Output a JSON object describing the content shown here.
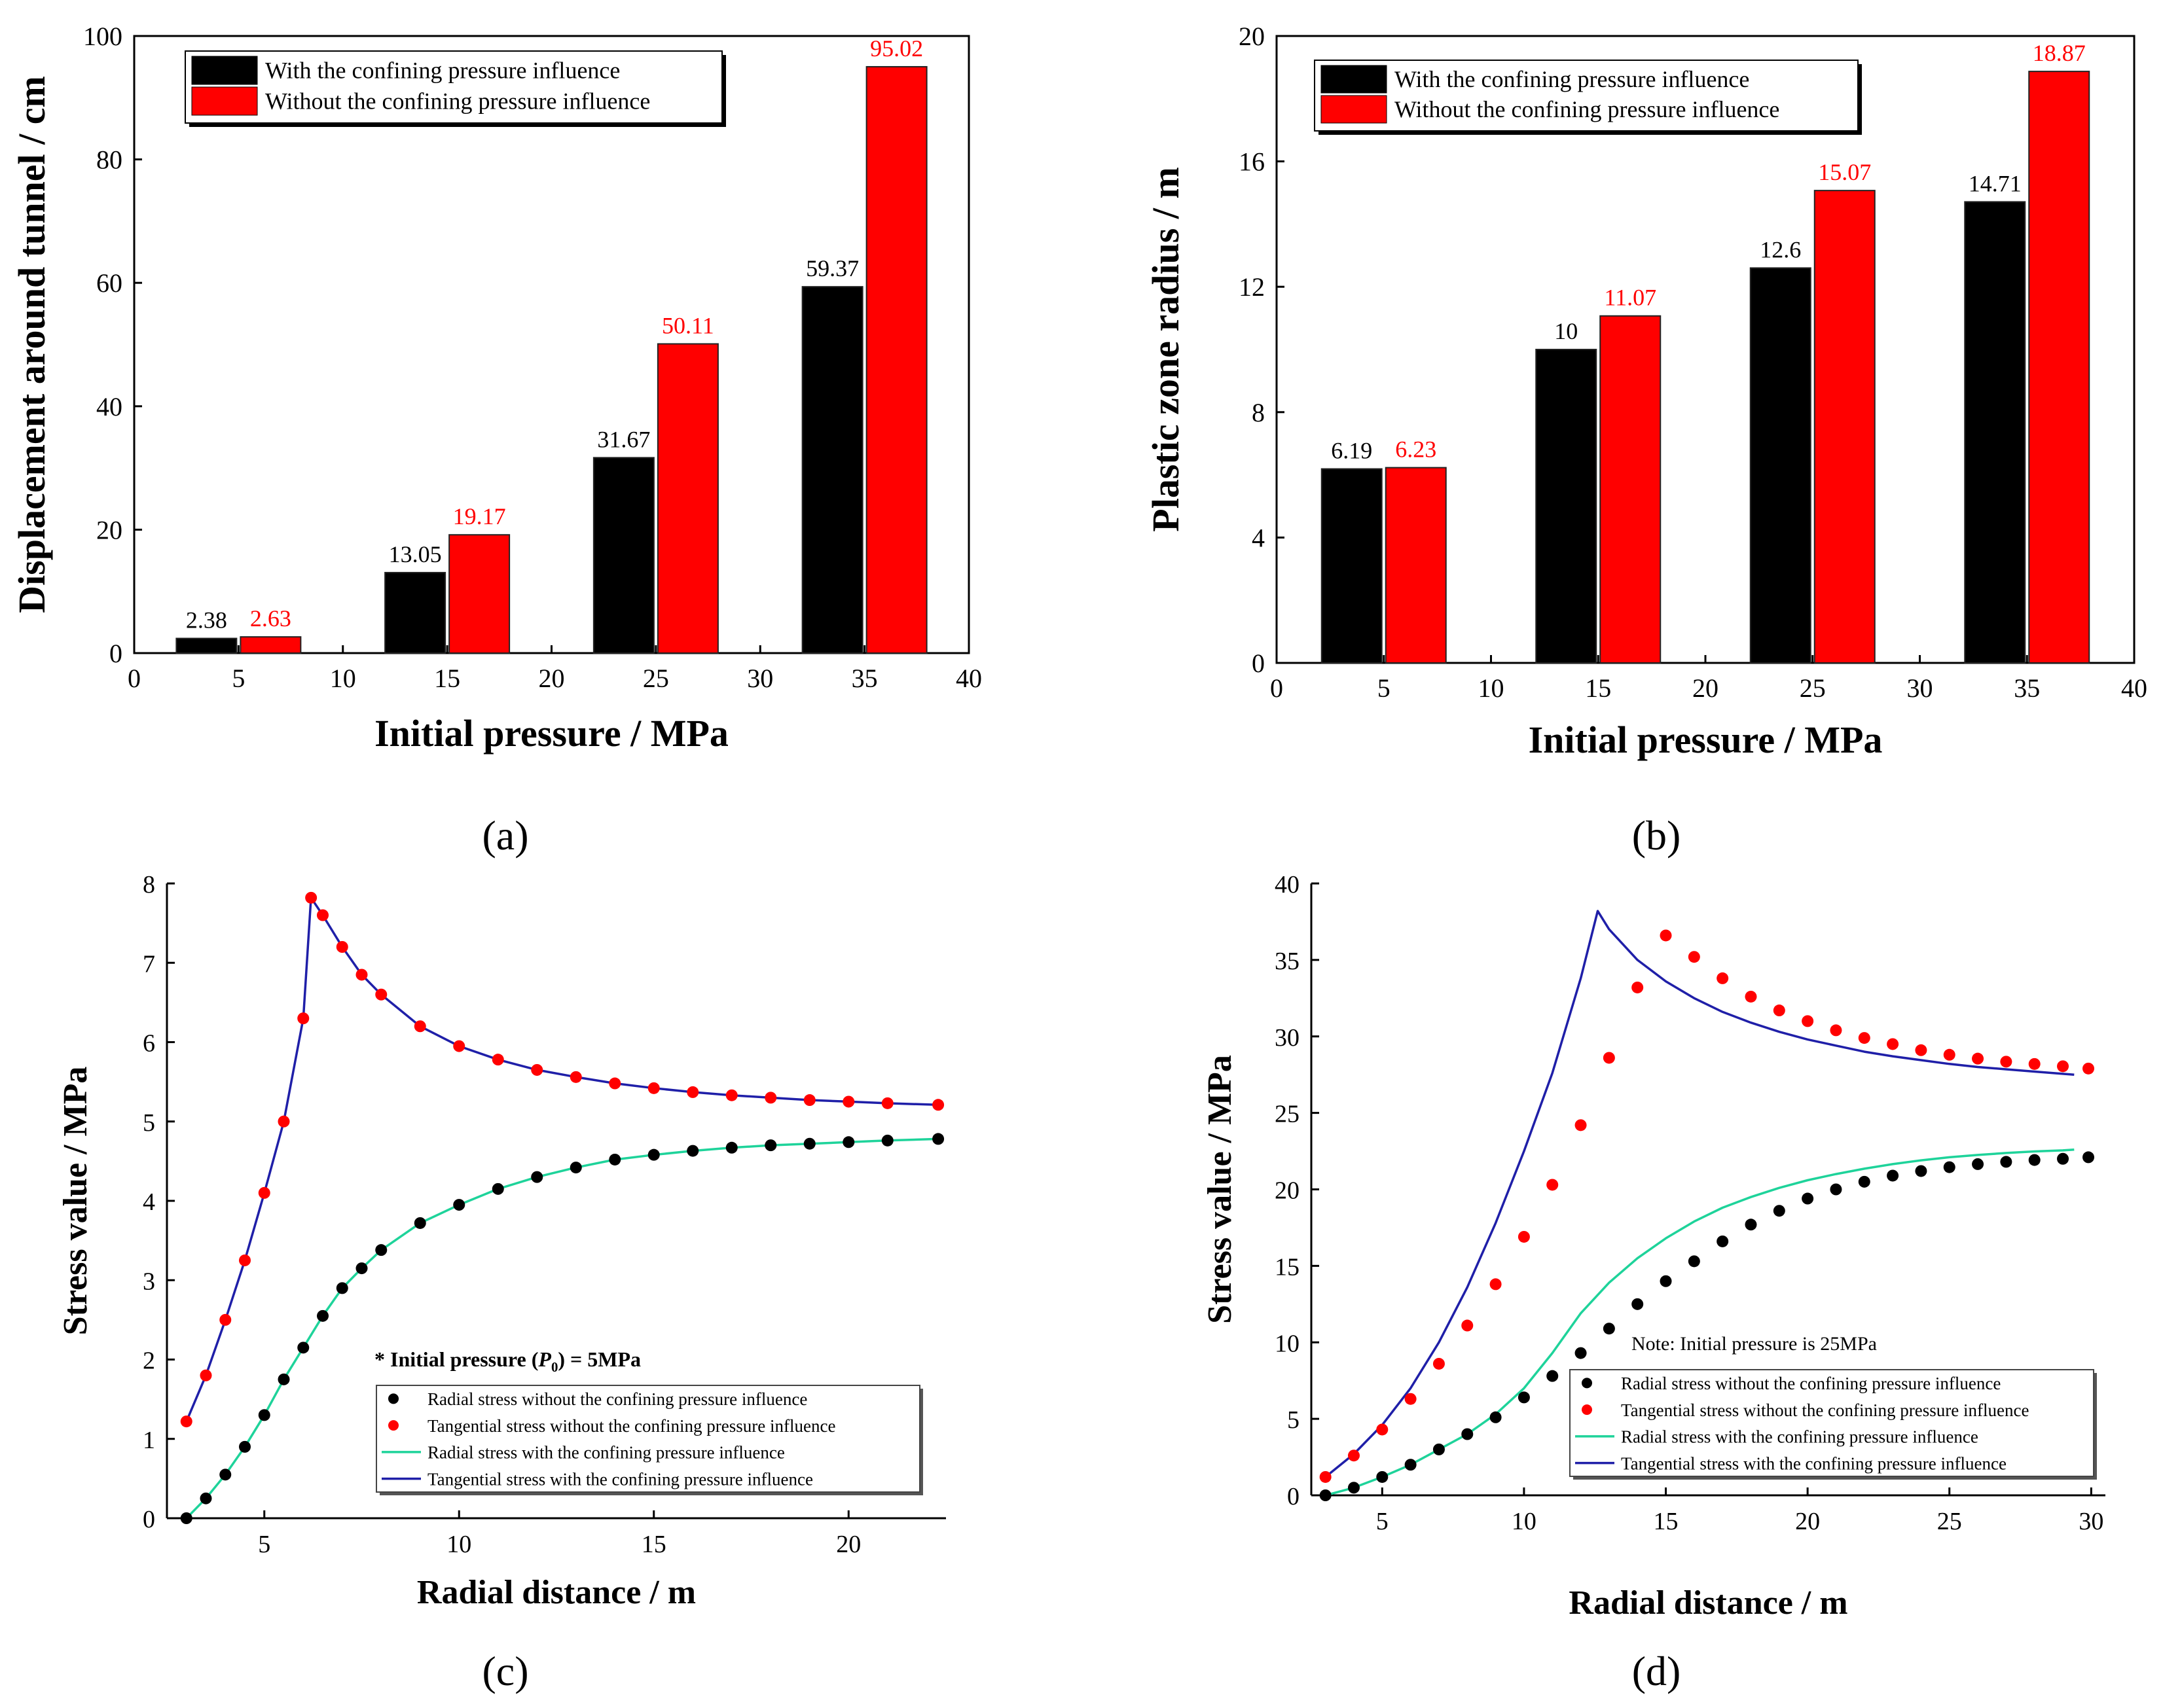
{
  "chart_data": [
    {
      "id": "a",
      "type": "bar",
      "panel_label": "(a)",
      "xlabel": "Initial pressure / MPa",
      "ylabel": "Displacement around tunnel / cm",
      "xlim": [
        0,
        40
      ],
      "ylim": [
        0,
        100
      ],
      "xticks": [
        0,
        5,
        10,
        15,
        20,
        25,
        30,
        35,
        40
      ],
      "yticks": [
        0,
        20,
        40,
        60,
        80,
        100
      ],
      "categories": [
        5,
        15,
        25,
        35
      ],
      "series": [
        {
          "name": "With the confining pressure influence",
          "color": "#000000",
          "label_color": "#000000",
          "values": [
            2.38,
            13.05,
            31.67,
            59.37
          ],
          "labels": [
            "2.38",
            "13.05",
            "31.67",
            "59.37"
          ]
        },
        {
          "name": "Without the confining pressure influence",
          "color": "#ff0000",
          "label_color": "#ff0000",
          "values": [
            2.63,
            19.17,
            50.11,
            95.02
          ],
          "labels": [
            "2.63",
            "19.17",
            "50.11",
            "95.02"
          ]
        }
      ],
      "legend": "top-left"
    },
    {
      "id": "b",
      "type": "bar",
      "panel_label": "(b)",
      "xlabel": "Initial pressure / MPa",
      "ylabel": "Plastic zone radius / m",
      "xlim": [
        0,
        40
      ],
      "ylim": [
        0,
        20
      ],
      "xticks": [
        0,
        5,
        10,
        15,
        20,
        25,
        30,
        35,
        40
      ],
      "yticks": [
        0,
        4,
        8,
        12,
        16,
        20
      ],
      "categories": [
        5,
        15,
        25,
        35
      ],
      "series": [
        {
          "name": "With the confining pressure influence",
          "color": "#000000",
          "label_color": "#000000",
          "values": [
            6.19,
            10,
            12.6,
            14.71
          ],
          "labels": [
            "6.19",
            "10",
            "12.6",
            "14.71"
          ]
        },
        {
          "name": "Without the confining pressure influence",
          "color": "#ff0000",
          "label_color": "#ff0000",
          "values": [
            6.23,
            11.07,
            15.07,
            18.87
          ],
          "labels": [
            "6.23",
            "11.07",
            "15.07",
            "18.87"
          ]
        }
      ],
      "legend": "top-left"
    },
    {
      "id": "c",
      "type": "line",
      "panel_label": "(c)",
      "xlabel": "Radial distance / m",
      "ylabel": "Stress value / MPa",
      "xlim": [
        2.5,
        22.5
      ],
      "ylim": [
        0,
        8
      ],
      "xticks": [
        5,
        10,
        15,
        20
      ],
      "yticks": [
        0,
        1,
        2,
        3,
        4,
        5,
        6,
        7,
        8
      ],
      "annotation": "* Initial pressure (P0) = 5MPa",
      "annotation_parts": {
        "prefix": "* Initial pressure (",
        "symbol": "P",
        "subscript": "0",
        "suffix": ") = 5MPa"
      },
      "legend": "bottom-right",
      "series": [
        {
          "name": "Radial stress without the confining pressure influence",
          "style": "dots",
          "color": "#000000",
          "points": [
            [
              3.0,
              0
            ],
            [
              3.5,
              0.25
            ],
            [
              4,
              0.55
            ],
            [
              4.5,
              0.9
            ],
            [
              5,
              1.3
            ],
            [
              5.5,
              1.75
            ],
            [
              6,
              2.15
            ],
            [
              6.5,
              2.55
            ],
            [
              7,
              2.9
            ],
            [
              7.5,
              3.15
            ],
            [
              8,
              3.38
            ],
            [
              9,
              3.72
            ],
            [
              10,
              3.95
            ],
            [
              11,
              4.15
            ],
            [
              12,
              4.3
            ],
            [
              13,
              4.42
            ],
            [
              14,
              4.52
            ],
            [
              15,
              4.58
            ],
            [
              16,
              4.63
            ],
            [
              17,
              4.67
            ],
            [
              18,
              4.7
            ],
            [
              19,
              4.72
            ],
            [
              20,
              4.74
            ],
            [
              21,
              4.76
            ],
            [
              22.3,
              4.78
            ]
          ]
        },
        {
          "name": "Tangential stress without the confining pressure influence",
          "style": "dots",
          "color": "#ff0000",
          "points": [
            [
              3.0,
              1.22
            ],
            [
              3.5,
              1.8
            ],
            [
              4,
              2.5
            ],
            [
              4.5,
              3.25
            ],
            [
              5,
              4.1
            ],
            [
              5.5,
              5.0
            ],
            [
              6,
              6.3
            ],
            [
              6.2,
              7.82
            ],
            [
              6.5,
              7.6
            ],
            [
              7,
              7.2
            ],
            [
              7.5,
              6.85
            ],
            [
              8,
              6.6
            ],
            [
              9,
              6.2
            ],
            [
              10,
              5.95
            ],
            [
              11,
              5.78
            ],
            [
              12,
              5.65
            ],
            [
              13,
              5.56
            ],
            [
              14,
              5.48
            ],
            [
              15,
              5.42
            ],
            [
              16,
              5.37
            ],
            [
              17,
              5.33
            ],
            [
              18,
              5.3
            ],
            [
              19,
              5.27
            ],
            [
              20,
              5.25
            ],
            [
              21,
              5.23
            ],
            [
              22.3,
              5.21
            ]
          ]
        },
        {
          "name": "Radial stress with the confining pressure influence",
          "style": "line",
          "color": "#1ed39a",
          "points": [
            [
              3.0,
              0
            ],
            [
              3.5,
              0.25
            ],
            [
              4,
              0.55
            ],
            [
              4.5,
              0.9
            ],
            [
              5,
              1.3
            ],
            [
              5.5,
              1.75
            ],
            [
              6,
              2.15
            ],
            [
              6.5,
              2.55
            ],
            [
              7,
              2.9
            ],
            [
              7.5,
              3.15
            ],
            [
              8,
              3.38
            ],
            [
              9,
              3.72
            ],
            [
              10,
              3.95
            ],
            [
              11,
              4.15
            ],
            [
              12,
              4.3
            ],
            [
              13,
              4.42
            ],
            [
              14,
              4.52
            ],
            [
              15,
              4.58
            ],
            [
              16,
              4.63
            ],
            [
              17,
              4.67
            ],
            [
              18,
              4.7
            ],
            [
              19,
              4.72
            ],
            [
              20,
              4.74
            ],
            [
              21,
              4.76
            ],
            [
              22.3,
              4.78
            ]
          ]
        },
        {
          "name": "Tangential stress with the confining pressure influence",
          "style": "line",
          "color": "#1f1fa8",
          "points": [
            [
              3.0,
              1.22
            ],
            [
              3.5,
              1.8
            ],
            [
              4,
              2.5
            ],
            [
              4.5,
              3.25
            ],
            [
              5,
              4.1
            ],
            [
              5.5,
              5.0
            ],
            [
              6,
              6.3
            ],
            [
              6.2,
              7.82
            ],
            [
              6.5,
              7.6
            ],
            [
              7,
              7.2
            ],
            [
              7.5,
              6.85
            ],
            [
              8,
              6.6
            ],
            [
              9,
              6.2
            ],
            [
              10,
              5.95
            ],
            [
              11,
              5.78
            ],
            [
              12,
              5.65
            ],
            [
              13,
              5.56
            ],
            [
              14,
              5.48
            ],
            [
              15,
              5.42
            ],
            [
              16,
              5.37
            ],
            [
              17,
              5.33
            ],
            [
              18,
              5.3
            ],
            [
              19,
              5.27
            ],
            [
              20,
              5.25
            ],
            [
              21,
              5.23
            ],
            [
              22.3,
              5.21
            ]
          ]
        }
      ]
    },
    {
      "id": "d",
      "type": "line",
      "panel_label": "(d)",
      "xlabel": "Radial distance / m",
      "ylabel": "Stress value / MPa",
      "xlim": [
        2.5,
        30.5
      ],
      "ylim": [
        0,
        40
      ],
      "xticks": [
        5,
        10,
        15,
        20,
        25,
        30
      ],
      "yticks": [
        0,
        5,
        10,
        15,
        20,
        25,
        30,
        35,
        40
      ],
      "annotation": "Note: Initial pressure is 25MPa",
      "legend": "bottom-right",
      "series": [
        {
          "name": "Radial stress without the confining pressure influence",
          "style": "dots",
          "color": "#000000",
          "points": [
            [
              3.0,
              0
            ],
            [
              4,
              0.5
            ],
            [
              5,
              1.2
            ],
            [
              6,
              2.0
            ],
            [
              7,
              3.0
            ],
            [
              8,
              4.0
            ],
            [
              9,
              5.1
            ],
            [
              10,
              6.4
            ],
            [
              11,
              7.8
            ],
            [
              12,
              9.3
            ],
            [
              13,
              10.9
            ],
            [
              14,
              12.5
            ],
            [
              15,
              14.0
            ],
            [
              16,
              15.3
            ],
            [
              17,
              16.6
            ],
            [
              18,
              17.7
            ],
            [
              19,
              18.6
            ],
            [
              20,
              19.4
            ],
            [
              21,
              20.0
            ],
            [
              22,
              20.5
            ],
            [
              23,
              20.9
            ],
            [
              24,
              21.2
            ],
            [
              25,
              21.45
            ],
            [
              26,
              21.65
            ],
            [
              27,
              21.8
            ],
            [
              28,
              21.92
            ],
            [
              29,
              22.0
            ],
            [
              29.9,
              22.1
            ]
          ]
        },
        {
          "name": "Tangential stress without the confining pressure influence",
          "style": "dots",
          "color": "#ff0000",
          "points": [
            [
              3.0,
              1.2
            ],
            [
              4,
              2.6
            ],
            [
              5,
              4.3
            ],
            [
              6,
              6.3
            ],
            [
              7,
              8.6
            ],
            [
              8,
              11.1
            ],
            [
              9,
              13.8
            ],
            [
              10,
              16.9
            ],
            [
              11,
              20.3
            ],
            [
              12,
              24.2
            ],
            [
              13,
              28.6
            ],
            [
              14,
              33.2
            ],
            [
              15,
              36.6
            ],
            [
              16,
              35.2
            ],
            [
              17,
              33.8
            ],
            [
              18,
              32.6
            ],
            [
              19,
              31.7
            ],
            [
              20,
              31.0
            ],
            [
              21,
              30.4
            ],
            [
              22,
              29.9
            ],
            [
              23,
              29.5
            ],
            [
              24,
              29.1
            ],
            [
              25,
              28.8
            ],
            [
              26,
              28.55
            ],
            [
              27,
              28.35
            ],
            [
              28,
              28.2
            ],
            [
              29,
              28.05
            ],
            [
              29.9,
              27.9
            ]
          ]
        },
        {
          "name": "Radial stress with the confining pressure influence",
          "style": "line",
          "color": "#1ed39a",
          "points": [
            [
              3.0,
              0
            ],
            [
              4,
              0.5
            ],
            [
              5,
              1.2
            ],
            [
              6,
              2.0
            ],
            [
              7,
              3.0
            ],
            [
              8,
              4.0
            ],
            [
              9,
              5.3
            ],
            [
              10,
              7.0
            ],
            [
              11,
              9.3
            ],
            [
              12,
              11.9
            ],
            [
              13,
              13.9
            ],
            [
              14,
              15.5
            ],
            [
              15,
              16.8
            ],
            [
              16,
              17.9
            ],
            [
              17,
              18.8
            ],
            [
              18,
              19.5
            ],
            [
              19,
              20.1
            ],
            [
              20,
              20.6
            ],
            [
              21,
              21.0
            ],
            [
              22,
              21.35
            ],
            [
              23,
              21.65
            ],
            [
              24,
              21.9
            ],
            [
              25,
              22.1
            ],
            [
              26,
              22.25
            ],
            [
              27,
              22.38
            ],
            [
              28,
              22.48
            ],
            [
              29,
              22.55
            ],
            [
              29.4,
              22.6
            ]
          ]
        },
        {
          "name": "Tangential stress with the confining pressure influence",
          "style": "line",
          "color": "#1f1fa8",
          "points": [
            [
              3.0,
              1.2
            ],
            [
              4,
              2.7
            ],
            [
              5,
              4.6
            ],
            [
              6,
              7.0
            ],
            [
              7,
              10.0
            ],
            [
              8,
              13.6
            ],
            [
              9,
              17.8
            ],
            [
              10,
              22.5
            ],
            [
              11,
              27.6
            ],
            [
              12,
              33.8
            ],
            [
              12.6,
              38.2
            ],
            [
              13,
              37.0
            ],
            [
              14,
              35.0
            ],
            [
              15,
              33.6
            ],
            [
              16,
              32.5
            ],
            [
              17,
              31.6
            ],
            [
              18,
              30.9
            ],
            [
              19,
              30.3
            ],
            [
              20,
              29.8
            ],
            [
              21,
              29.4
            ],
            [
              22,
              29.0
            ],
            [
              23,
              28.7
            ],
            [
              24,
              28.45
            ],
            [
              25,
              28.2
            ],
            [
              26,
              28.0
            ],
            [
              27,
              27.85
            ],
            [
              28,
              27.7
            ],
            [
              29.4,
              27.5
            ]
          ]
        }
      ]
    }
  ]
}
